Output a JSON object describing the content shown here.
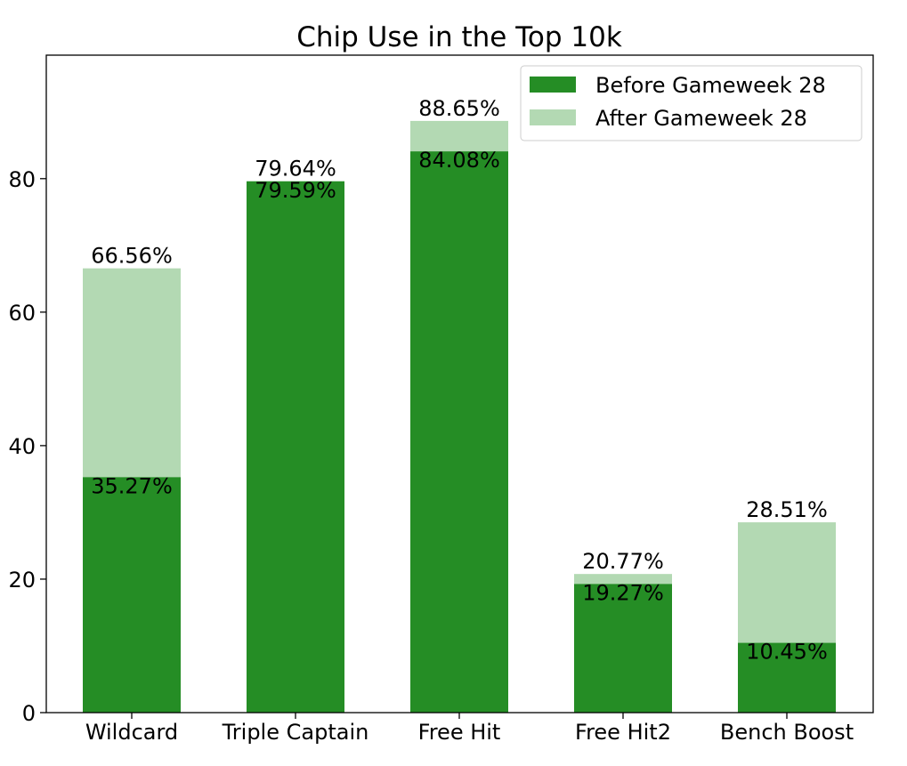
{
  "chart_data": {
    "type": "bar",
    "stacked": "overlay",
    "title": "Chip Use in the Top 10k",
    "xlabel": "",
    "ylabel": "",
    "ylim": [
      0,
      98.5
    ],
    "yticks": [
      0,
      20,
      40,
      60,
      80
    ],
    "grid": false,
    "legend_position": "top-right",
    "categories": [
      "Wildcard",
      "Triple Captain",
      "Free Hit",
      "Free Hit2",
      "Bench Boost"
    ],
    "series": [
      {
        "name": "Before Gameweek 28",
        "color": "#258d25",
        "values": [
          35.27,
          79.59,
          84.08,
          19.27,
          10.45
        ],
        "labels": [
          "35.27%",
          "79.59%",
          "84.08%",
          "19.27%",
          "10.45%"
        ]
      },
      {
        "name": "After Gameweek 28",
        "color": "#b3d9b3",
        "values": [
          66.56,
          79.64,
          88.65,
          20.77,
          28.51
        ],
        "labels": [
          "66.56%",
          "79.64%",
          "88.65%",
          "20.77%",
          "28.51%"
        ]
      }
    ]
  }
}
